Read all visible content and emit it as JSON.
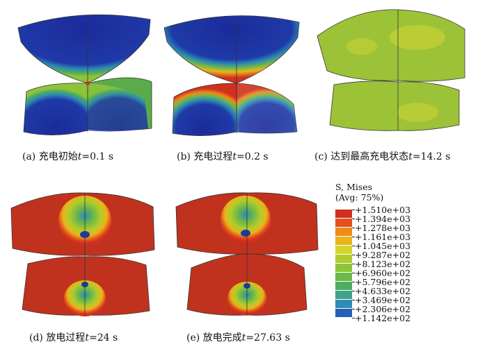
{
  "panels": [
    {
      "label": "(a) 充电初始",
      "variable": "t",
      "value": "=0.1 s"
    },
    {
      "label": "(b) 充电过程",
      "variable": "t",
      "value": "=0.2 s"
    },
    {
      "label": "(c) 达到最高充电状态",
      "variable": "t",
      "value": "=14.2 s"
    },
    {
      "label": "(d) 放电过程",
      "variable": "t",
      "value": "=24 s"
    },
    {
      "label": "(e) 放电完成",
      "variable": "t",
      "value": "=27.63 s"
    }
  ],
  "legend": {
    "title_line1": "S, Mises",
    "title_line2": "(Avg: 75%)",
    "values": [
      "+1.510e+03",
      "+1.394e+03",
      "+1.278e+03",
      "+1.161e+03",
      "+1.045e+03",
      "+9.287e+02",
      "+8.123e+02",
      "+6.960e+02",
      "+5.796e+02",
      "+4.633e+02",
      "+3.469e+02",
      "+2.306e+02",
      "+1.142e+02"
    ],
    "colors": [
      "#d0301e",
      "#e5501c",
      "#ef8a1c",
      "#e8b51a",
      "#d6d42a",
      "#b0cc2c",
      "#8ec43a",
      "#6cb848",
      "#4eac60",
      "#3ea38a",
      "#2e8cb2",
      "#2360b8",
      "#1c3aa2"
    ]
  }
}
